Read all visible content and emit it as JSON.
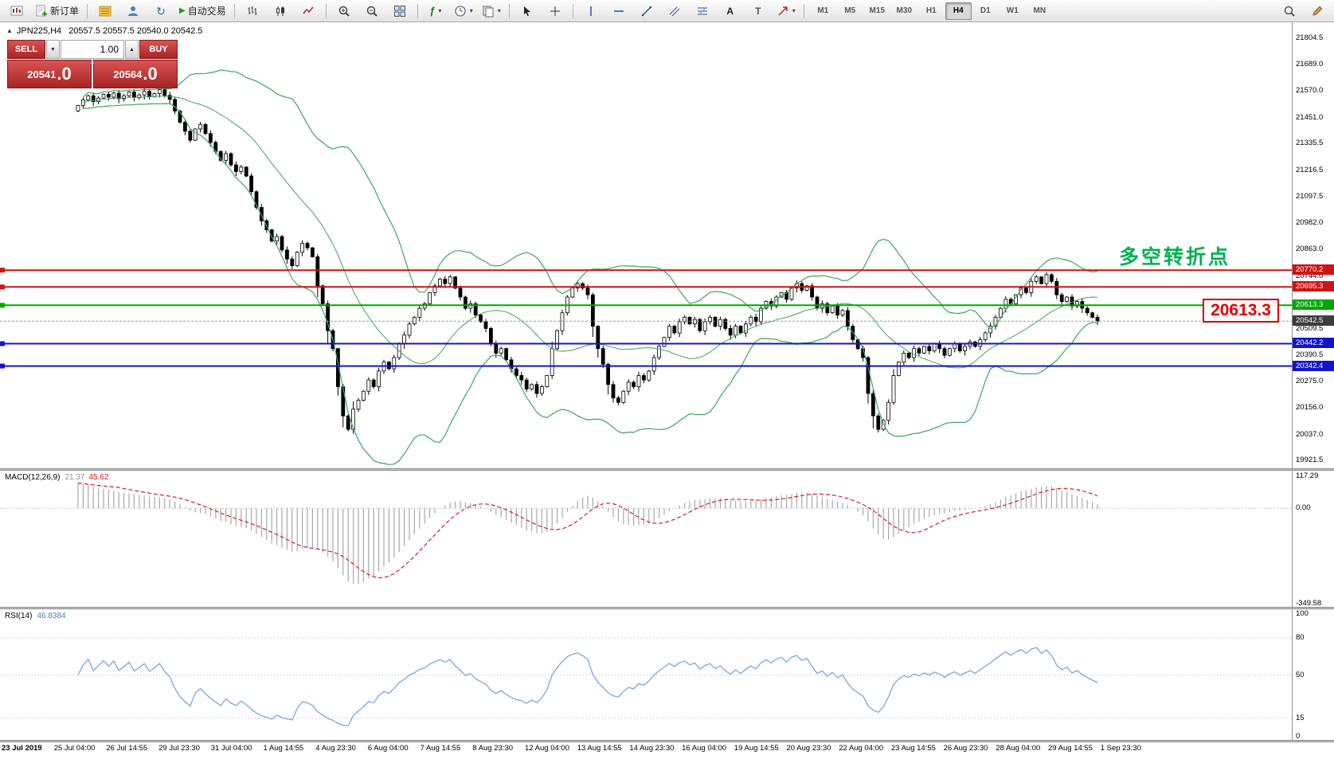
{
  "toolbar": {
    "new_order_label": "新订单",
    "auto_trading_label": "自动交易",
    "timeframes": [
      "M1",
      "M5",
      "M15",
      "M30",
      "H1",
      "H4",
      "D1",
      "W1",
      "MN"
    ],
    "active_timeframe": "H4",
    "icons": {
      "refresh": "↻",
      "play": "▶",
      "indicators": "ƒ",
      "dropdown": "▾",
      "text_tool": "A",
      "label_tool": "T"
    }
  },
  "chart": {
    "panel_toggle": "▲",
    "symbol_header": "JPN225,H4",
    "ohlc": "20557.5 20557.5 20540.0 20542.5",
    "annotation": "多空转折点",
    "annotation_color": "#00b050",
    "price_callout": "20613.3",
    "trade_panel": {
      "sell_label": "SELL",
      "buy_label": "BUY",
      "volume": "1.00",
      "dropdown_icon": "▼",
      "up_icon": "▲",
      "caret": "▴",
      "sell_price_main": "20541",
      "sell_price_frac": ".0",
      "buy_price_main": "20564",
      "buy_price_frac": ".0"
    },
    "axis_ticks": [
      21804.5,
      21689.0,
      21570.0,
      21451.0,
      21335.5,
      21216.5,
      21097.5,
      20982.0,
      20863.0,
      20744.0,
      20509.5,
      20390.5,
      20275.0,
      20156.0,
      20037.0,
      19921.5
    ],
    "levels": [
      {
        "label": "20770.2",
        "price": 20770.2,
        "color": "#cc1414"
      },
      {
        "label": "20695.3",
        "price": 20695.3,
        "color": "#cc1414"
      },
      {
        "label": "20613.3",
        "price": 20613.3,
        "color": "#00a800"
      },
      {
        "label": "20442.2",
        "price": 20442.2,
        "color": "#1414cc"
      },
      {
        "label": "20342.4",
        "price": 20342.4,
        "color": "#1414cc"
      }
    ],
    "current_price": {
      "label": "20542.5",
      "value": 20542.5,
      "color": "#3c3c3c"
    }
  },
  "chart_data": {
    "type": "candlestick",
    "symbol": "JPN225",
    "timeframe": "H4",
    "price_range": [
      19886,
      21876
    ],
    "open_seed": 21480,
    "closes": [
      21505,
      21530,
      21548,
      21522,
      21538,
      21555,
      21542,
      21560,
      21535,
      21548,
      21565,
      21540,
      21552,
      21568,
      21545,
      21558,
      21575,
      21550,
      21532,
      21480,
      21430,
      21390,
      21350,
      21400,
      21420,
      21380,
      21340,
      21300,
      21260,
      21290,
      21240,
      21210,
      21230,
      21190,
      21120,
      21050,
      20990,
      20950,
      20900,
      20920,
      20860,
      20820,
      20790,
      20850,
      20890,
      20870,
      20830,
      20700,
      20620,
      20500,
      20420,
      20250,
      20120,
      20060,
      20150,
      20190,
      20230,
      20280,
      20250,
      20320,
      20360,
      20330,
      20380,
      20440,
      20480,
      20530,
      20560,
      20600,
      20620,
      20670,
      20700,
      20730,
      20710,
      20740,
      20690,
      20650,
      20600,
      20620,
      20570,
      20540,
      20510,
      20440,
      20400,
      20420,
      20370,
      20330,
      20300,
      20280,
      20240,
      20260,
      20220,
      20250,
      20300,
      20420,
      20500,
      20580,
      20650,
      20690,
      20710,
      20690,
      20660,
      20520,
      20420,
      20350,
      20260,
      20200,
      20180,
      20230,
      20270,
      20250,
      20300,
      20280,
      20320,
      20380,
      20430,
      20470,
      20520,
      20490,
      20540,
      20560,
      20530,
      20550,
      20500,
      20540,
      20560,
      20520,
      20550,
      20510,
      20480,
      20520,
      20490,
      20530,
      20560,
      20540,
      20600,
      20630,
      20610,
      20650,
      20670,
      20640,
      20690,
      20710,
      20680,
      20700,
      20650,
      20600,
      20620,
      20580,
      20610,
      20570,
      20590,
      20520,
      20460,
      20420,
      20380,
      20220,
      20120,
      20060,
      20100,
      20180,
      20300,
      20360,
      20400,
      20380,
      20420,
      20400,
      20430,
      20410,
      20440,
      20420,
      20390,
      20420,
      20440,
      20410,
      20430,
      20450,
      20430,
      20460,
      20490,
      20520,
      20560,
      20600,
      20640,
      20620,
      20660,
      20690,
      20670,
      20720,
      20740,
      20710,
      20750,
      20720,
      20660,
      20630,
      20650,
      20610,
      20630,
      20600,
      20580,
      20560,
      20542.5
    ],
    "time_labels": [
      "23 Jul 2019",
      "25 Jul 04:00",
      "26 Jul 14:55",
      "29 Jul 23:30",
      "31 Jul 04:00",
      "1 Aug 14:55",
      "4 Aug 23:30",
      "6 Aug 04:00",
      "7 Aug 14:55",
      "8 Aug 23:30",
      "12 Aug 04:00",
      "13 Aug 14:55",
      "14 Aug 23:30",
      "16 Aug 04:00",
      "19 Aug 14:55",
      "20 Aug 23:30",
      "22 Aug 04:00",
      "23 Aug 14:55",
      "26 Aug 23:30",
      "28 Aug 04:00",
      "29 Aug 14:55",
      "1 Sep 23:30"
    ],
    "indicators": {
      "bollinger": {
        "period": 20,
        "deviation": 2,
        "color": "#3fa45f"
      },
      "macd": {
        "fast": 12,
        "slow": 26,
        "signal": 9
      },
      "rsi": {
        "period": 14
      }
    }
  },
  "macd_panel": {
    "label": "MACD(12,26,9)",
    "value_main": "21.37",
    "value_signal": "45.62",
    "axis": [
      {
        "label": "117.29",
        "value": 117.29
      },
      {
        "label": "0.00",
        "value": 0
      },
      {
        "label": "-349.58",
        "value": -349.58
      }
    ]
  },
  "rsi_panel": {
    "label": "RSI(14)",
    "value": "46.8384",
    "axis": [
      {
        "label": "100",
        "value": 100
      },
      {
        "label": "80",
        "value": 80
      },
      {
        "label": "50",
        "value": 50
      },
      {
        "label": "15",
        "value": 15
      },
      {
        "label": "0",
        "value": 0
      }
    ],
    "levels": [
      80,
      50,
      15
    ]
  }
}
